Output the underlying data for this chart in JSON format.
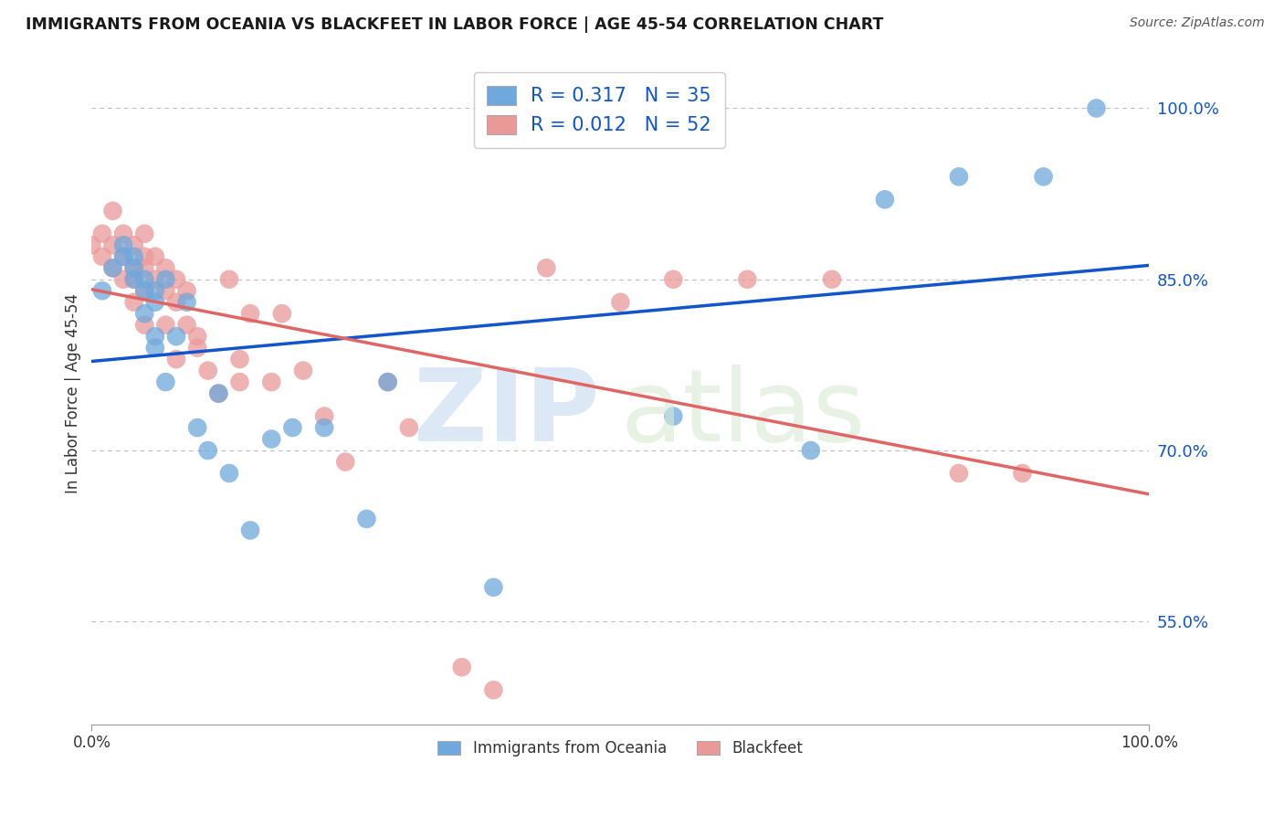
{
  "title": "IMMIGRANTS FROM OCEANIA VS BLACKFEET IN LABOR FORCE | AGE 45-54 CORRELATION CHART",
  "source": "Source: ZipAtlas.com",
  "ylabel": "In Labor Force | Age 45-54",
  "xlim": [
    0.0,
    1.0
  ],
  "ylim": [
    0.46,
    1.04
  ],
  "yticks": [
    0.55,
    0.7,
    0.85,
    1.0
  ],
  "ytick_labels": [
    "55.0%",
    "70.0%",
    "85.0%",
    "100.0%"
  ],
  "oceania_color": "#6fa8dc",
  "blackfeet_color": "#ea9999",
  "oceania_R": 0.317,
  "oceania_N": 35,
  "blackfeet_R": 0.012,
  "blackfeet_N": 52,
  "trend_oceania_color": "#1155cc",
  "trend_blackfeet_color": "#e06666",
  "oceania_x": [
    0.01,
    0.02,
    0.03,
    0.03,
    0.04,
    0.04,
    0.04,
    0.05,
    0.05,
    0.05,
    0.06,
    0.06,
    0.06,
    0.06,
    0.07,
    0.07,
    0.08,
    0.09,
    0.1,
    0.11,
    0.12,
    0.13,
    0.15,
    0.17,
    0.19,
    0.22,
    0.26,
    0.28,
    0.38,
    0.55,
    0.68,
    0.75,
    0.82,
    0.9,
    0.95
  ],
  "oceania_y": [
    0.84,
    0.86,
    0.88,
    0.87,
    0.87,
    0.86,
    0.85,
    0.85,
    0.84,
    0.82,
    0.84,
    0.83,
    0.8,
    0.79,
    0.85,
    0.76,
    0.8,
    0.83,
    0.72,
    0.7,
    0.75,
    0.68,
    0.63,
    0.71,
    0.72,
    0.72,
    0.64,
    0.76,
    0.58,
    0.73,
    0.7,
    0.92,
    0.94,
    0.94,
    1.0
  ],
  "blackfeet_x": [
    0.0,
    0.01,
    0.01,
    0.02,
    0.02,
    0.02,
    0.03,
    0.03,
    0.03,
    0.04,
    0.04,
    0.04,
    0.04,
    0.05,
    0.05,
    0.05,
    0.05,
    0.05,
    0.06,
    0.06,
    0.07,
    0.07,
    0.07,
    0.08,
    0.08,
    0.08,
    0.09,
    0.09,
    0.1,
    0.1,
    0.11,
    0.12,
    0.13,
    0.14,
    0.14,
    0.15,
    0.17,
    0.18,
    0.2,
    0.22,
    0.24,
    0.28,
    0.3,
    0.35,
    0.38,
    0.43,
    0.5,
    0.55,
    0.62,
    0.7,
    0.82,
    0.88
  ],
  "blackfeet_y": [
    0.88,
    0.89,
    0.87,
    0.91,
    0.88,
    0.86,
    0.89,
    0.87,
    0.85,
    0.88,
    0.86,
    0.85,
    0.83,
    0.89,
    0.87,
    0.86,
    0.84,
    0.81,
    0.87,
    0.85,
    0.86,
    0.84,
    0.81,
    0.85,
    0.83,
    0.78,
    0.84,
    0.81,
    0.8,
    0.79,
    0.77,
    0.75,
    0.85,
    0.78,
    0.76,
    0.82,
    0.76,
    0.82,
    0.77,
    0.73,
    0.69,
    0.76,
    0.72,
    0.51,
    0.49,
    0.86,
    0.83,
    0.85,
    0.85,
    0.85,
    0.68,
    0.68
  ]
}
